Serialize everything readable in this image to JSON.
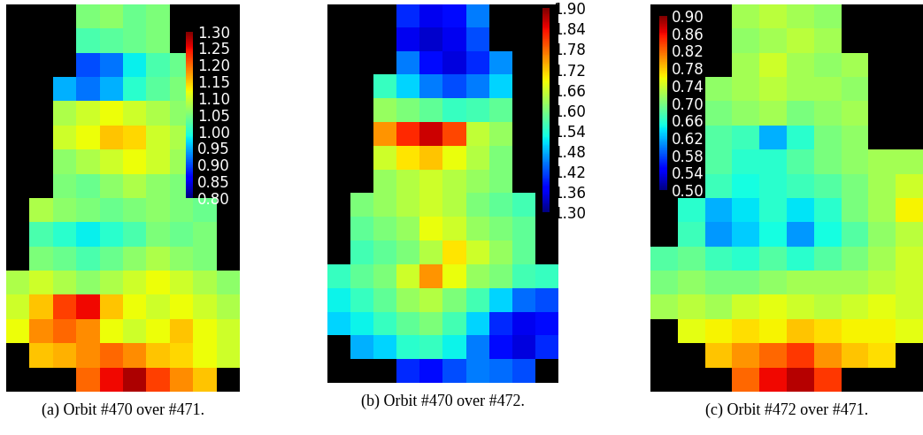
{
  "chart_data": [
    {
      "type": "heatmap",
      "title": "(a) Orbit #470 over #471.",
      "tick_labels": false,
      "color_range": [
        0.8,
        1.3
      ],
      "color_ticks": [
        {
          "value": 0.8,
          "label": "0.80"
        },
        0.85,
        {
          "value": 0.9,
          "label": "0.90"
        },
        0.95,
        {
          "value": 1.0,
          "label": "1.00"
        },
        1.05,
        {
          "value": 1.1,
          "label": "1.10"
        },
        1.15,
        {
          "value": 1.2,
          "label": "1.20"
        },
        1.25,
        {
          "value": 1.3,
          "label": "1.30"
        }
      ],
      "cells": [
        [
          null,
          null,
          null,
          1.05,
          1.06,
          1.04,
          1.05,
          null,
          null,
          null
        ],
        [
          null,
          null,
          null,
          1.02,
          1.03,
          1.04,
          1.05,
          null,
          null,
          null
        ],
        [
          null,
          null,
          null,
          0.9,
          0.92,
          0.98,
          1.02,
          1.04,
          null,
          null
        ],
        [
          null,
          null,
          0.95,
          0.92,
          0.95,
          1.0,
          1.03,
          1.05,
          null,
          null
        ],
        [
          null,
          null,
          1.08,
          1.1,
          1.12,
          1.1,
          1.08,
          1.06,
          null,
          null
        ],
        [
          null,
          null,
          1.1,
          1.12,
          1.15,
          1.14,
          1.1,
          1.08,
          null,
          null
        ],
        [
          null,
          null,
          1.06,
          1.08,
          1.1,
          1.12,
          1.1,
          1.07,
          null,
          null
        ],
        [
          null,
          null,
          1.05,
          1.04,
          1.06,
          1.08,
          1.06,
          1.05,
          null,
          null
        ],
        [
          null,
          1.08,
          1.06,
          1.05,
          1.04,
          1.05,
          1.06,
          1.05,
          1.04,
          null
        ],
        [
          null,
          1.02,
          1.0,
          0.98,
          1.0,
          1.02,
          1.05,
          1.04,
          1.05,
          null
        ],
        [
          null,
          1.05,
          1.04,
          1.02,
          1.04,
          1.06,
          1.08,
          1.06,
          1.05,
          null
        ],
        [
          1.08,
          1.1,
          1.08,
          1.06,
          1.08,
          1.1,
          1.12,
          1.1,
          1.08,
          1.06
        ],
        [
          1.1,
          1.15,
          1.22,
          1.25,
          1.15,
          1.12,
          1.1,
          1.12,
          1.1,
          1.08
        ],
        [
          1.12,
          1.18,
          1.2,
          1.18,
          1.12,
          1.1,
          1.12,
          1.15,
          1.12,
          1.1
        ],
        [
          null,
          1.15,
          1.16,
          1.18,
          1.2,
          1.18,
          1.15,
          1.14,
          1.12,
          1.1
        ],
        [
          null,
          null,
          null,
          1.2,
          1.25,
          1.28,
          1.22,
          1.18,
          1.15,
          null
        ]
      ]
    },
    {
      "type": "heatmap",
      "title": "(b) Orbit #470 over #472.",
      "tick_labels": false,
      "color_range": [
        1.3,
        1.9
      ],
      "color_ticks": [
        {
          "value": 1.3,
          "label": "1.30"
        },
        1.36,
        1.42,
        1.48,
        1.54,
        {
          "value": 1.6,
          "label": "1.60"
        },
        1.66,
        1.72,
        1.78,
        1.84,
        {
          "value": 1.9,
          "label": "1.90"
        }
      ],
      "cells": [
        [
          null,
          null,
          null,
          1.4,
          1.36,
          1.38,
          1.45,
          null,
          null,
          null
        ],
        [
          null,
          null,
          null,
          1.36,
          1.34,
          1.36,
          1.42,
          null,
          null,
          null
        ],
        [
          null,
          null,
          null,
          1.45,
          1.38,
          1.35,
          1.4,
          1.46,
          null,
          null
        ],
        [
          null,
          null,
          1.55,
          1.5,
          1.45,
          1.42,
          1.45,
          1.5,
          null,
          null
        ],
        [
          null,
          null,
          1.62,
          1.6,
          1.58,
          1.55,
          1.56,
          1.58,
          null,
          null
        ],
        [
          null,
          null,
          1.75,
          1.82,
          1.86,
          1.8,
          1.65,
          1.62,
          null,
          null
        ],
        [
          null,
          null,
          1.66,
          1.7,
          1.72,
          1.68,
          1.64,
          1.6,
          null,
          null
        ],
        [
          null,
          null,
          1.62,
          1.64,
          1.66,
          1.64,
          1.62,
          1.6,
          null,
          null
        ],
        [
          null,
          1.6,
          1.62,
          1.64,
          1.66,
          1.64,
          1.6,
          1.58,
          1.56,
          null
        ],
        [
          null,
          1.58,
          1.6,
          1.62,
          1.68,
          1.66,
          1.62,
          1.6,
          1.58,
          null
        ],
        [
          null,
          1.56,
          1.58,
          1.6,
          1.64,
          1.7,
          1.66,
          1.62,
          1.58,
          null
        ],
        [
          1.55,
          1.58,
          1.6,
          1.66,
          1.75,
          1.68,
          1.62,
          1.6,
          1.56,
          1.55
        ],
        [
          1.52,
          1.55,
          1.58,
          1.62,
          1.64,
          1.6,
          1.56,
          1.5,
          1.44,
          1.42
        ],
        [
          1.5,
          1.52,
          1.55,
          1.58,
          1.6,
          1.56,
          1.5,
          1.4,
          1.36,
          1.38
        ],
        [
          null,
          1.48,
          1.5,
          1.54,
          1.55,
          1.52,
          1.45,
          1.38,
          1.35,
          1.4
        ],
        [
          null,
          null,
          null,
          1.4,
          1.38,
          1.42,
          1.45,
          1.44,
          1.42,
          null
        ]
      ]
    },
    {
      "type": "heatmap",
      "title": "(c) Orbit #472 over #471.",
      "tick_labels": false,
      "color_range": [
        0.5,
        0.9
      ],
      "color_ticks": [
        {
          "value": 0.5,
          "label": "0.50"
        },
        0.54,
        0.58,
        0.62,
        0.66,
        {
          "value": 0.7,
          "label": "0.70"
        },
        0.74,
        0.78,
        0.82,
        0.86,
        {
          "value": 0.9,
          "label": "0.90"
        }
      ],
      "cells": [
        [
          null,
          null,
          null,
          0.72,
          0.73,
          0.72,
          0.71,
          null,
          null,
          null
        ],
        [
          null,
          null,
          null,
          0.71,
          0.72,
          0.73,
          0.72,
          null,
          null,
          null
        ],
        [
          null,
          null,
          null,
          0.72,
          0.74,
          0.72,
          0.71,
          0.72,
          null,
          null
        ],
        [
          null,
          null,
          0.71,
          0.72,
          0.73,
          0.72,
          0.72,
          0.71,
          null,
          null
        ],
        [
          null,
          null,
          0.7,
          0.71,
          0.72,
          0.7,
          0.71,
          0.72,
          null,
          null
        ],
        [
          null,
          null,
          0.68,
          0.67,
          0.62,
          0.66,
          0.7,
          0.71,
          null,
          null
        ],
        [
          null,
          null,
          0.68,
          0.66,
          0.66,
          0.68,
          0.7,
          0.71,
          0.72,
          0.72
        ],
        [
          null,
          null,
          0.67,
          0.65,
          0.66,
          0.67,
          0.68,
          0.7,
          0.72,
          0.74
        ],
        [
          null,
          0.66,
          0.62,
          0.64,
          0.66,
          0.64,
          0.66,
          0.7,
          0.72,
          0.76
        ],
        [
          null,
          0.67,
          0.61,
          0.63,
          0.65,
          0.61,
          0.65,
          0.68,
          0.71,
          0.73
        ],
        [
          0.68,
          0.69,
          0.67,
          0.66,
          0.68,
          0.66,
          0.68,
          0.7,
          0.72,
          0.74
        ],
        [
          0.7,
          0.71,
          0.7,
          0.7,
          0.71,
          0.72,
          0.72,
          0.72,
          0.73,
          0.74
        ],
        [
          0.72,
          0.73,
          0.72,
          0.74,
          0.75,
          0.74,
          0.73,
          0.74,
          0.75,
          0.74
        ],
        [
          null,
          0.75,
          0.76,
          0.77,
          0.76,
          0.78,
          0.77,
          0.76,
          0.76,
          0.75
        ],
        [
          null,
          null,
          0.78,
          0.8,
          0.82,
          0.84,
          0.8,
          0.78,
          0.77,
          null
        ],
        [
          null,
          null,
          null,
          0.82,
          0.86,
          0.88,
          0.84,
          null,
          null,
          null
        ]
      ]
    }
  ]
}
